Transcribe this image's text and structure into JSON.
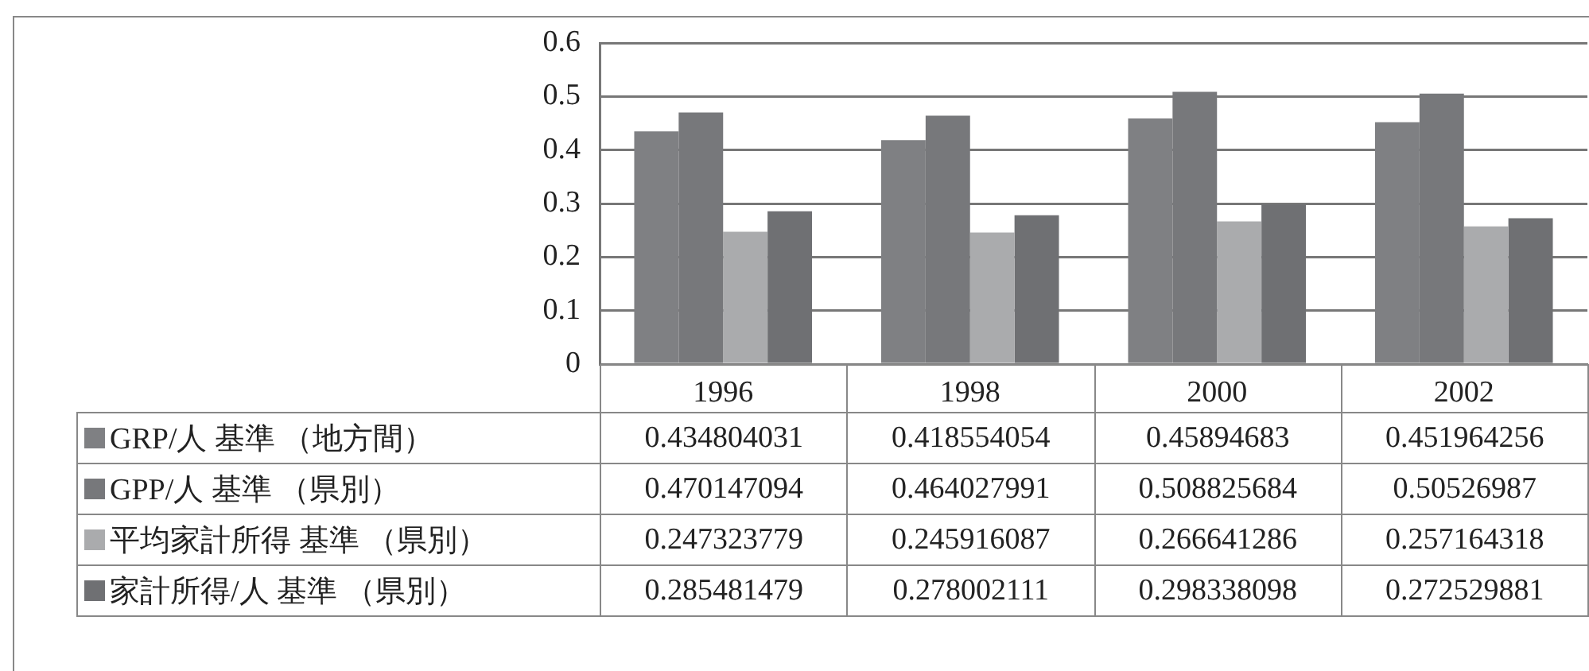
{
  "chart_data": {
    "type": "bar",
    "categories": [
      "1996",
      "1998",
      "2000",
      "2002"
    ],
    "series": [
      {
        "name": "GRP/人 基準 （地方間）",
        "color": "#7f8083",
        "values": [
          0.434804031,
          0.418554054,
          0.45894683,
          0.451964256
        ]
      },
      {
        "name": "GPP/人 基準 （県別）",
        "color": "#77787b",
        "values": [
          0.470147094,
          0.464027991,
          0.508825684,
          0.50526987
        ]
      },
      {
        "name": "平均家計所得 基準 （県別）",
        "color": "#aaabad",
        "values": [
          0.247323779,
          0.245916087,
          0.266641286,
          0.257164318
        ]
      },
      {
        "name": "家計所得/人 基準 （県別）",
        "color": "#6f7073",
        "values": [
          0.285481479,
          0.278002111,
          0.298338098,
          0.272529881
        ]
      }
    ],
    "ylim": [
      0,
      0.6
    ],
    "yticks": [
      0,
      0.1,
      0.2,
      0.3,
      0.4,
      0.5,
      0.6
    ],
    "grid": "y",
    "legend": "bottom",
    "data_labels": true
  }
}
